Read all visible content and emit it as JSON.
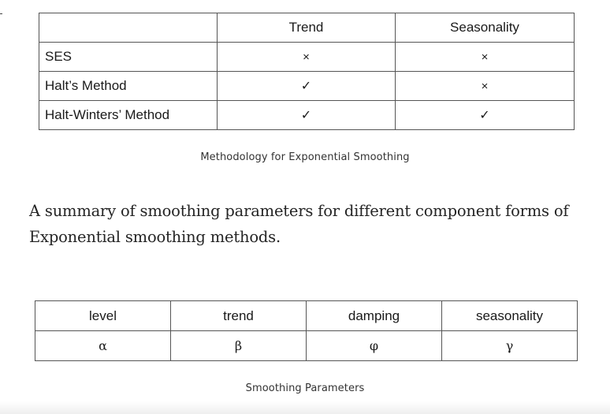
{
  "methodology_table": {
    "headers": [
      "",
      "Trend",
      "Seasonality"
    ],
    "rows": [
      {
        "label": "SES",
        "trend": "×",
        "seasonality": "×"
      },
      {
        "label": "Halt’s Method",
        "trend": "✓",
        "seasonality": "×"
      },
      {
        "label": "Halt-Winters’ Method",
        "trend": "✓",
        "seasonality": "✓"
      }
    ],
    "caption": "Methodology for Exponential Smoothing"
  },
  "paragraph": {
    "text": "A summary of smoothing parameters for different component forms of Exponential smoothing methods."
  },
  "parameters_table": {
    "headers": [
      "level",
      "trend",
      "damping",
      "seasonality"
    ],
    "values": [
      "α",
      "β",
      "φ",
      "γ"
    ],
    "caption": "Smoothing Parameters"
  }
}
